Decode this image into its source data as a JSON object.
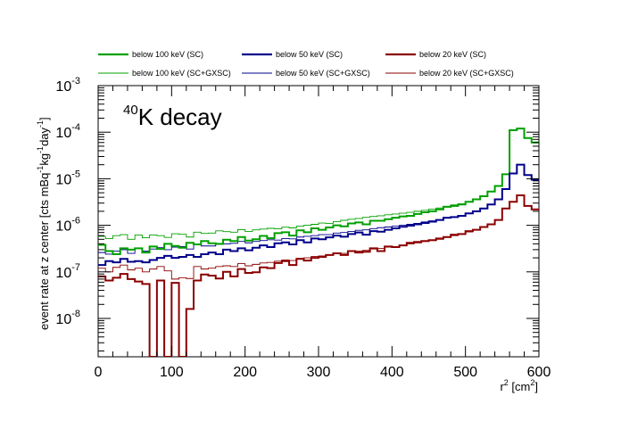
{
  "chart_data": {
    "type": "line",
    "subtype": "histogram-step",
    "annotation": {
      "superscript": "40",
      "main": "K decay"
    },
    "xlabel": {
      "base": "r",
      "sup1": "2",
      "mid": " [cm",
      "sup2": "2",
      "end": "]"
    },
    "ylabel": {
      "p1": "event rate at z center [cts mBq",
      "s1": "-1",
      "p2": "kg",
      "s2": "-1",
      "p3": "day",
      "s3": "-1",
      "p4": "]"
    },
    "xlim": [
      0,
      600
    ],
    "ylim": [
      1.5e-09,
      0.001
    ],
    "yscale": "log",
    "x_ticks": [
      0,
      100,
      200,
      300,
      400,
      500,
      600
    ],
    "y_ticks": [
      {
        "value": 1e-08,
        "base": "10",
        "exp": "-8"
      },
      {
        "value": 1e-07,
        "base": "10",
        "exp": "-7"
      },
      {
        "value": 1e-06,
        "base": "10",
        "exp": "-6"
      },
      {
        "value": 1e-05,
        "base": "10",
        "exp": "-5"
      },
      {
        "value": 0.0001,
        "base": "10",
        "exp": "-4"
      },
      {
        "value": 0.001,
        "base": "10",
        "exp": "-3"
      }
    ],
    "bin_width": 10,
    "legend_position": "top",
    "series": [
      {
        "name": "below 100 keV (SC)",
        "color": "#00a000",
        "thick": true,
        "values": [
          3.8e-07,
          2.8e-07,
          2.4e-07,
          3.2e-07,
          3e-07,
          3.2e-07,
          2.6e-07,
          3.5e-07,
          3.1e-07,
          4e-07,
          3.6e-07,
          3.3e-07,
          4.2e-07,
          3.9e-07,
          4.6e-07,
          4.1e-07,
          4e-07,
          4.9e-07,
          4.6e-07,
          5.6e-07,
          4.7e-07,
          5e-07,
          5.9e-07,
          5.3e-07,
          6.8e-07,
          7.1e-07,
          6e-07,
          7.8e-07,
          7.1e-07,
          8.6e-07,
          8e-07,
          9e-07,
          1e-06,
          9.5e-07,
          1.1e-06,
          1.15e-06,
          1.05e-06,
          1.25e-06,
          1.25e-06,
          1.35e-06,
          1.45e-06,
          1.55e-06,
          1.6e-06,
          1.75e-06,
          1.9e-06,
          2e-06,
          2.2e-06,
          2.5e-06,
          2.6e-06,
          2.8e-06,
          3.2e-06,
          3.6e-06,
          4.2e-06,
          5.3e-06,
          7e-06,
          1.25e-05,
          0.00011,
          0.00012,
          7.5e-05,
          6e-05
        ]
      },
      {
        "name": "below 50 keV (SC)",
        "color": "#00008b",
        "thick": true,
        "values": [
          1.4e-07,
          1.7e-07,
          1.6e-07,
          1.9e-07,
          1.65e-07,
          1.7e-07,
          1.6e-07,
          1.8e-07,
          2e-07,
          2.2e-07,
          2e-07,
          2.1e-07,
          2.3e-07,
          2.1e-07,
          2.4e-07,
          2.6e-07,
          2.4e-07,
          3e-07,
          2.8e-07,
          3.2e-07,
          2.9e-07,
          3.3e-07,
          3.7e-07,
          3.4e-07,
          4.1e-07,
          4.3e-07,
          3.9e-07,
          4.8e-07,
          4.3e-07,
          5.2e-07,
          5e-07,
          5.5e-07,
          6e-07,
          5.7e-07,
          6.5e-07,
          7e-07,
          6.3e-07,
          7.5e-07,
          7.3e-07,
          8e-07,
          8.6e-07,
          9.3e-07,
          9.8e-07,
          1.05e-06,
          1.12e-06,
          1.2e-06,
          1.3e-06,
          1.45e-06,
          1.5e-06,
          1.6e-06,
          1.8e-06,
          2e-06,
          2.3e-06,
          2.8e-06,
          3.6e-06,
          6e-06,
          1.3e-05,
          2e-05,
          1.2e-05,
          9.5e-06
        ]
      },
      {
        "name": "below 20 keV (SC)",
        "color": "#8b0000",
        "thick": true,
        "values": [
          8e-08,
          6.5e-08,
          7.5e-08,
          9e-08,
          7e-08,
          6.2e-08,
          5.5e-08,
          1e-12,
          6.5e-08,
          1e-12,
          5.8e-08,
          1e-12,
          1.6e-08,
          6.5e-08,
          8.8e-08,
          8.3e-08,
          7.2e-08,
          1e-07,
          8e-08,
          1.15e-07,
          9.5e-08,
          9.8e-08,
          1.25e-07,
          1.2e-07,
          1.55e-07,
          1.7e-07,
          1.4e-07,
          1.9e-07,
          1.75e-07,
          2e-07,
          2.1e-07,
          2.3e-07,
          2.5e-07,
          2.3e-07,
          2.8e-07,
          2.6e-07,
          2.7e-07,
          3.2e-07,
          2.8e-07,
          3.5e-07,
          3.4e-07,
          3.7e-07,
          4.2e-07,
          4.4e-07,
          4.6e-07,
          4.8e-07,
          5.2e-07,
          5.6e-07,
          6.3e-07,
          6.5e-07,
          7.5e-07,
          8e-07,
          9.2e-07,
          1.05e-06,
          1.3e-06,
          2.3e-06,
          3.2e-06,
          4.4e-06,
          2.6e-06,
          2.2e-06
        ]
      },
      {
        "name": "below 100 keV (SC+GXSC)",
        "color": "#00a000",
        "thick": false,
        "values": [
          5.8e-07,
          5.2e-07,
          6e-07,
          6.3e-07,
          5e-07,
          6.2e-07,
          5.4e-07,
          6.2e-07,
          6e-07,
          5.5e-07,
          6.6e-07,
          6.4e-07,
          5.6e-07,
          7.1e-07,
          6.7e-07,
          6.8e-07,
          7.6e-07,
          7.3e-07,
          7.1e-07,
          8.1e-07,
          7.4e-07,
          8e-07,
          8.3e-07,
          8.6e-07,
          8.4e-07,
          9.1e-07,
          8.8e-07,
          9.6e-07,
          1e-06,
          1.05e-06,
          1.12e-06,
          1.1e-06,
          1.2e-06,
          1.28e-06,
          1.35e-06,
          1.4e-06,
          1.48e-06,
          1.55e-06,
          1.6e-06,
          1.68e-06,
          1.75e-06,
          1.82e-06,
          1.9e-06,
          2e-06,
          2.1e-06,
          2.22e-06,
          2.35e-06,
          2.55e-06,
          2.75e-06,
          2.9e-06,
          3.2e-06,
          3.6e-06,
          4.2e-06,
          5.3e-06,
          7e-06,
          1.25e-05,
          0.00011,
          0.00012,
          7.5e-05,
          6e-05
        ]
      },
      {
        "name": "below 50 keV (SC+GXSC)",
        "color": "#00008b",
        "thick": false,
        "values": [
          2.6e-07,
          2.4e-07,
          2.8e-07,
          3e-07,
          2.5e-07,
          3.2e-07,
          2.8e-07,
          3.1e-07,
          3.3e-07,
          3e-07,
          3.4e-07,
          3.5e-07,
          3.1e-07,
          3.8e-07,
          3.6e-07,
          3.6e-07,
          3.9e-07,
          4e-07,
          4.1e-07,
          4.5e-07,
          4.2e-07,
          4.5e-07,
          4.7e-07,
          4.9e-07,
          4.8e-07,
          5.2e-07,
          5.1e-07,
          5.6e-07,
          5.8e-07,
          6e-07,
          6.3e-07,
          6.3e-07,
          6.8e-07,
          7e-07,
          7.4e-07,
          7.8e-07,
          8e-07,
          8.5e-07,
          8.9e-07,
          9.2e-07,
          9.6e-07,
          1e-06,
          1.05e-06,
          1.1e-06,
          1.18e-06,
          1.25e-06,
          1.32e-06,
          1.45e-06,
          1.52e-06,
          1.62e-06,
          1.8e-06,
          2e-06,
          2.3e-06,
          2.8e-06,
          3.6e-06,
          6e-06,
          1.3e-05,
          2e-05,
          1.2e-05,
          9.5e-06
        ]
      },
      {
        "name": "below 20 keV (SC+GXSC)",
        "color": "#8b0000",
        "thick": false,
        "values": [
          1.2e-07,
          1e-07,
          1.25e-07,
          1.4e-07,
          1.1e-07,
          1.2e-07,
          1e-07,
          1.15e-07,
          1.3e-07,
          1.05e-07,
          7e-08,
          7.5e-08,
          7.2e-08,
          1.3e-07,
          1.15e-07,
          1.2e-07,
          1.3e-07,
          1.35e-07,
          1.3e-07,
          1.5e-07,
          1.35e-07,
          1.45e-07,
          1.55e-07,
          1.6e-07,
          1.7e-07,
          1.8e-07,
          1.75e-07,
          1.95e-07,
          2e-07,
          2.15e-07,
          2.2e-07,
          2.3e-07,
          2.5e-07,
          2.5e-07,
          2.75e-07,
          2.8e-07,
          2.9e-07,
          3.1e-07,
          3.2e-07,
          3.4e-07,
          3.5e-07,
          3.7e-07,
          4e-07,
          4.2e-07,
          4.5e-07,
          4.7e-07,
          5e-07,
          5.5e-07,
          6e-07,
          6.4e-07,
          7.2e-07,
          8e-07,
          9.2e-07,
          1.05e-06,
          1.3e-06,
          2.3e-06,
          3.2e-06,
          4.4e-06,
          2.6e-06,
          2.2e-06
        ]
      }
    ]
  }
}
